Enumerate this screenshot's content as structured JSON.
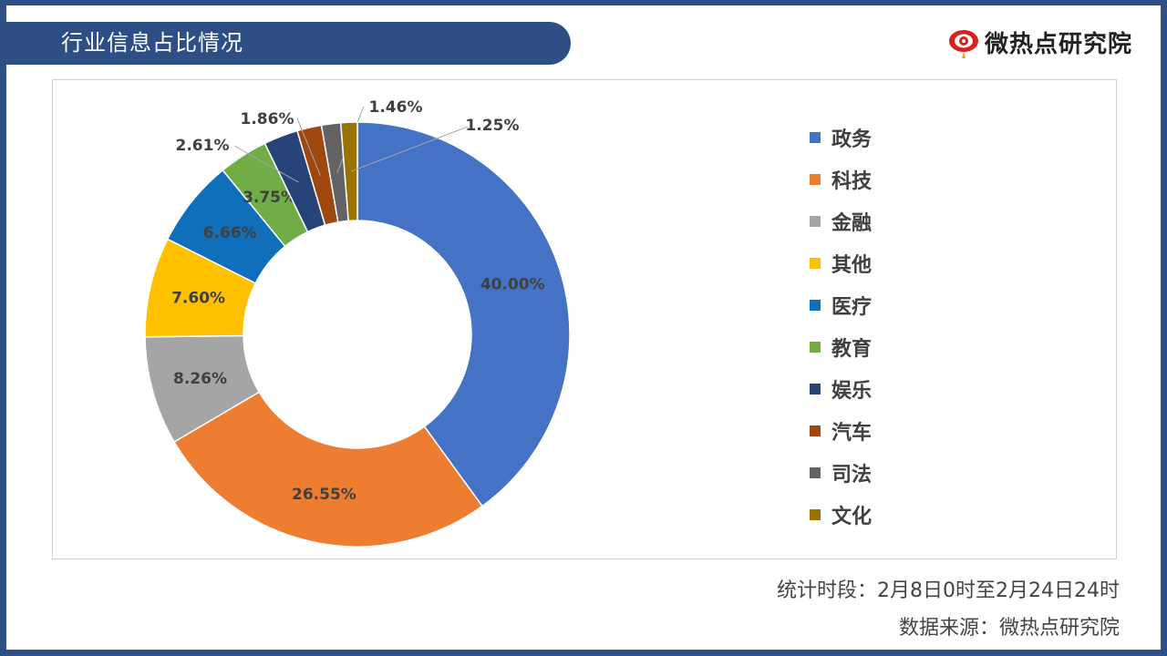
{
  "header": {
    "title": "行业信息占比情况"
  },
  "brand": {
    "name": "微热点研究院"
  },
  "footer": {
    "period": "统计时段：2月8日0时至2月24日24时",
    "source": "数据来源：微热点研究院"
  },
  "chart_data": {
    "type": "pie",
    "donut": true,
    "categories": [
      "政务",
      "科技",
      "金融",
      "其他",
      "医疗",
      "教育",
      "娱乐",
      "汽车",
      "司法",
      "文化"
    ],
    "values": [
      40.0,
      26.55,
      8.26,
      7.6,
      6.66,
      3.75,
      2.61,
      1.86,
      1.46,
      1.25
    ],
    "labels": [
      "40.00%",
      "26.55%",
      "8.26%",
      "7.60%",
      "6.66%",
      "3.75%",
      "2.61%",
      "1.86%",
      "1.46%",
      "1.25%"
    ],
    "colors": [
      "#4472c4",
      "#ed7d31",
      "#a5a5a5",
      "#ffc000",
      "#0f6fba",
      "#70ad47",
      "#264478",
      "#9e480e",
      "#636363",
      "#997300"
    ],
    "legend_position": "right"
  }
}
